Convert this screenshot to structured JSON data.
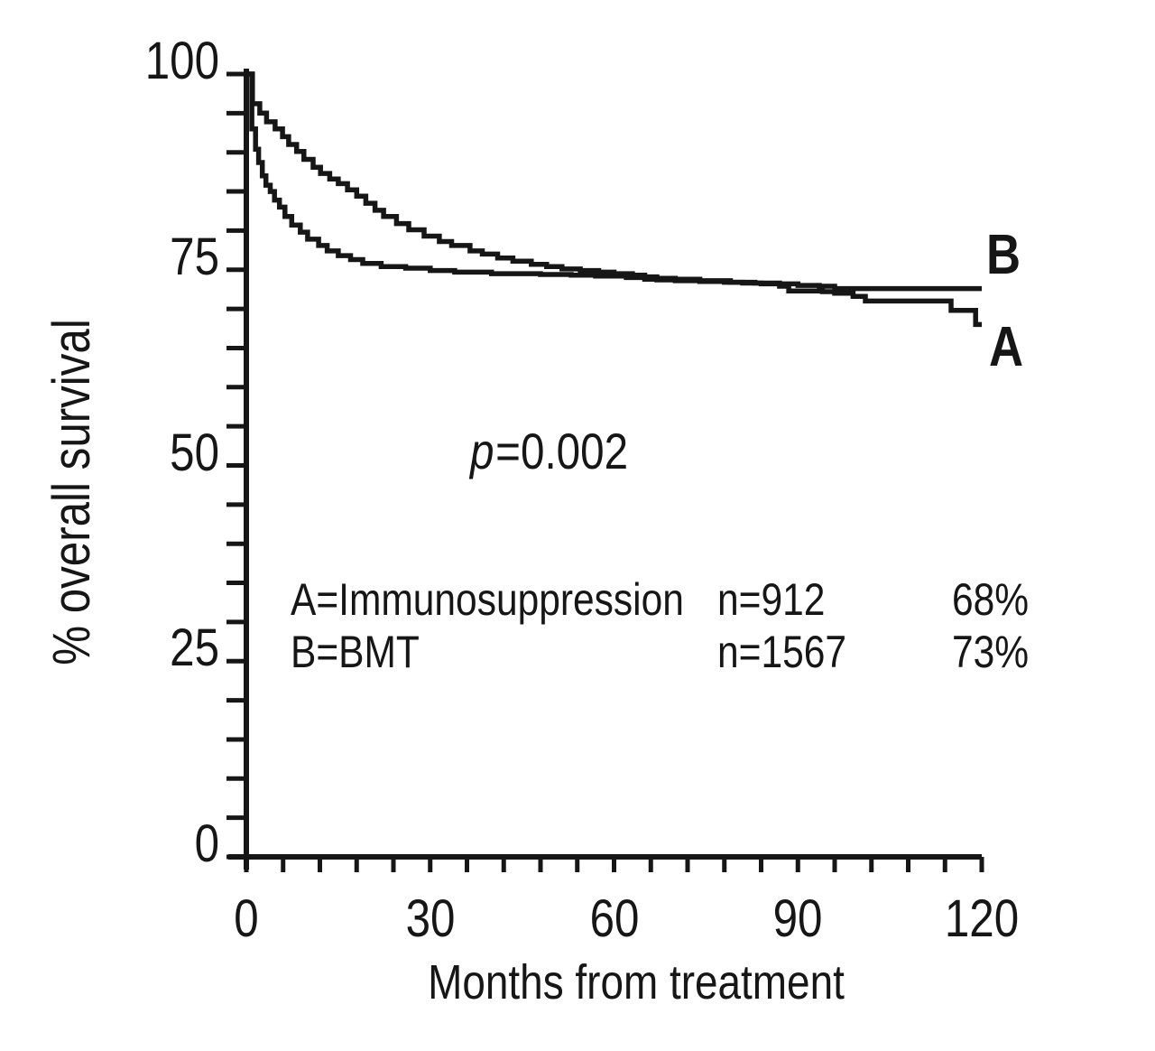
{
  "figure": {
    "ink_color": "#161616",
    "background_color": "#ffffff",
    "y_axis": {
      "label": "% overall survival",
      "tick_values": [
        100,
        75,
        50,
        25,
        0
      ],
      "tick_labels": [
        "100",
        "75",
        "50",
        "25",
        "0"
      ],
      "minor_step": 5
    },
    "x_axis": {
      "label": "Months from treatment",
      "tick_values": [
        0,
        30,
        60,
        90,
        120
      ],
      "tick_labels": [
        "0",
        "30",
        "60",
        "90",
        "120"
      ],
      "minor_step": 6
    },
    "p_value": {
      "p": "p",
      "rest": "=0.002"
    },
    "curve_end_labels": {
      "a": "A",
      "b": "B"
    },
    "legend": {
      "rows": [
        {
          "label": "A=Immunosuppression",
          "n": "n=912",
          "pct": "68%"
        },
        {
          "label": "B=BMT",
          "n": "n=1567",
          "pct": "73%"
        }
      ]
    }
  },
  "chart_data": {
    "type": "line",
    "subtype": "kaplan-meier-step",
    "title": "",
    "xlabel": "Months from treatment",
    "ylabel": "% overall survival",
    "xlim": [
      0,
      120
    ],
    "ylim": [
      0,
      100
    ],
    "x_ticks": [
      0,
      30,
      60,
      90,
      120
    ],
    "y_ticks": [
      0,
      25,
      50,
      75,
      100
    ],
    "grid": false,
    "legend_position": "inside-center-left",
    "annotations": [
      {
        "text": "p=0.002",
        "x": 44,
        "y": 50
      }
    ],
    "series": [
      {
        "name": "A",
        "label": "A=Immunosuppression",
        "n": 912,
        "final_value_pct": 68,
        "points": [
          [
            0,
            100
          ],
          [
            0.9,
            93
          ],
          [
            1.5,
            90.4
          ],
          [
            2,
            88.7
          ],
          [
            2.6,
            87
          ],
          [
            3.2,
            85.8
          ],
          [
            3.9,
            85
          ],
          [
            4.6,
            83.9
          ],
          [
            5.4,
            83
          ],
          [
            6.3,
            81.8
          ],
          [
            7.4,
            80.7
          ],
          [
            8.8,
            79.8
          ],
          [
            10,
            78.9
          ],
          [
            11.8,
            78.1
          ],
          [
            13.2,
            77.4
          ],
          [
            15,
            76.8
          ],
          [
            17,
            76.3
          ],
          [
            19,
            75.8
          ],
          [
            22,
            75.4
          ],
          [
            26,
            75.2
          ],
          [
            30,
            74.9
          ],
          [
            34,
            74.7
          ],
          [
            40,
            74.5
          ],
          [
            48,
            74.4
          ],
          [
            53,
            74.3
          ],
          [
            57,
            74.2
          ],
          [
            62,
            74.0
          ],
          [
            65,
            73.8
          ],
          [
            67,
            73.7
          ],
          [
            70,
            73.6
          ],
          [
            74,
            73.5
          ],
          [
            78,
            73.4
          ],
          [
            81,
            73.3
          ],
          [
            84,
            73.2
          ],
          [
            87,
            72.9
          ],
          [
            88.5,
            72.3
          ],
          [
            94,
            72.2
          ],
          [
            96,
            72.0
          ],
          [
            99,
            71.6
          ],
          [
            101,
            71.0
          ],
          [
            115,
            69.8
          ],
          [
            119,
            68.0
          ],
          [
            120,
            68.0
          ]
        ]
      },
      {
        "name": "B",
        "label": "B=BMT",
        "n": 1567,
        "final_value_pct": 73,
        "points": [
          [
            0,
            100
          ],
          [
            1,
            96.2
          ],
          [
            2.2,
            95.0
          ],
          [
            3.3,
            93.9
          ],
          [
            4.7,
            93.0
          ],
          [
            5.9,
            92.0
          ],
          [
            6.9,
            91.0
          ],
          [
            8.2,
            90.1
          ],
          [
            9.4,
            89.1
          ],
          [
            10.9,
            88.1
          ],
          [
            12.1,
            87.3
          ],
          [
            13.6,
            86.6
          ],
          [
            15,
            86.0
          ],
          [
            16.5,
            85.2
          ],
          [
            18,
            84.4
          ],
          [
            19.5,
            83.5
          ],
          [
            21,
            82.6
          ],
          [
            22.4,
            81.8
          ],
          [
            24.5,
            80.9
          ],
          [
            26.5,
            80.1
          ],
          [
            29,
            79.3
          ],
          [
            31.5,
            78.6
          ],
          [
            33.5,
            78.1
          ],
          [
            36.5,
            77.4
          ],
          [
            38.5,
            77.0
          ],
          [
            41,
            76.5
          ],
          [
            43.5,
            76.1
          ],
          [
            46.5,
            75.7
          ],
          [
            49,
            75.4
          ],
          [
            51.5,
            75.1
          ],
          [
            54.5,
            74.9
          ],
          [
            57.5,
            74.7
          ],
          [
            60,
            74.5
          ],
          [
            63,
            74.3
          ],
          [
            65,
            74.1
          ],
          [
            67,
            73.9
          ],
          [
            70,
            73.8
          ],
          [
            74,
            73.6
          ],
          [
            79,
            73.4
          ],
          [
            83,
            73.3
          ],
          [
            87,
            73.2
          ],
          [
            90,
            73.0
          ],
          [
            93.5,
            72.9
          ],
          [
            96,
            72.6
          ],
          [
            120,
            72.6
          ]
        ]
      }
    ]
  }
}
